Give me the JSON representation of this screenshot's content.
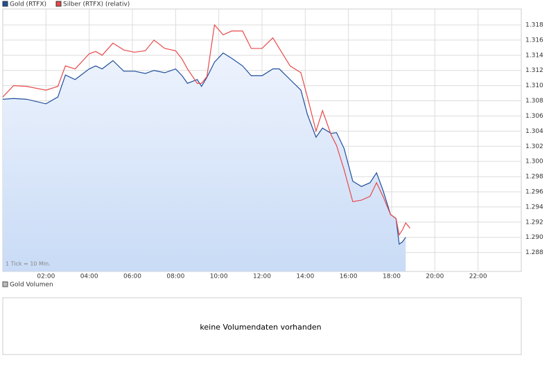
{
  "chart_data": {
    "type": "line",
    "legend": "top-left",
    "annotation": "1 Tick = 10 Min.",
    "grid": true,
    "x": [
      0,
      0.5,
      1.1,
      2.0,
      2.55,
      2.9,
      3.35,
      4.0,
      4.3,
      4.6,
      5.1,
      5.6,
      6.1,
      6.6,
      7.0,
      7.5,
      8.0,
      8.3,
      8.55,
      9.0,
      9.2,
      9.45,
      9.8,
      10.2,
      10.6,
      11.1,
      11.5,
      12.0,
      12.5,
      12.8,
      13.3,
      13.8,
      14.1,
      14.5,
      14.8,
      15.2,
      15.45,
      15.8,
      16.2,
      16.6,
      17.0,
      17.3,
      17.6,
      17.95,
      18.2,
      18.35,
      18.5,
      18.65,
      18.85
    ],
    "series": [
      {
        "name": "Gold (RTFX)",
        "color": "#1f4e9c",
        "area": true,
        "values": [
          1.3082,
          1.3083,
          1.3082,
          1.3076,
          1.3085,
          1.3114,
          1.3108,
          1.3122,
          1.3126,
          1.3122,
          1.3133,
          1.3119,
          1.3119,
          1.3116,
          1.312,
          1.3117,
          1.3122,
          1.3113,
          1.3103,
          1.3108,
          1.3099,
          1.3111,
          1.3131,
          1.3143,
          1.3136,
          1.3126,
          1.3113,
          1.3113,
          1.3122,
          1.3122,
          1.3108,
          1.3094,
          1.3062,
          1.3032,
          1.3044,
          1.3037,
          1.3038,
          1.3017,
          1.2974,
          1.2967,
          1.2972,
          1.2985,
          1.2962,
          1.293,
          1.2925,
          1.2891,
          1.2894,
          1.29,
          null
        ]
      },
      {
        "name": "Silber (RTFX) (relativ)",
        "color": "#e8484a",
        "area": false,
        "values": [
          1.3085,
          1.31,
          1.3099,
          1.3094,
          1.3099,
          1.3126,
          1.3122,
          1.3142,
          1.3145,
          1.314,
          1.3156,
          1.3147,
          1.3144,
          1.3146,
          1.316,
          1.3149,
          1.3146,
          1.3135,
          1.3122,
          1.3103,
          1.3103,
          1.3112,
          1.318,
          1.3167,
          1.3172,
          1.3172,
          1.3149,
          1.3149,
          1.3163,
          1.3149,
          1.3126,
          1.3117,
          1.3085,
          1.304,
          1.3067,
          1.3035,
          1.3021,
          1.2989,
          1.2947,
          1.2949,
          1.2954,
          1.2972,
          1.2954,
          1.293,
          1.2925,
          1.2903,
          1.291,
          1.2919,
          1.2912
        ]
      }
    ],
    "xlim": [
      0,
      24
    ],
    "xticks": [
      {
        "value": 2,
        "label": "02:00"
      },
      {
        "value": 4,
        "label": "04:00"
      },
      {
        "value": 6,
        "label": "06:00"
      },
      {
        "value": 8,
        "label": "08:00"
      },
      {
        "value": 10,
        "label": "10:00"
      },
      {
        "value": 12,
        "label": "12:00"
      },
      {
        "value": 14,
        "label": "14:00"
      },
      {
        "value": 16,
        "label": "16:00"
      },
      {
        "value": 18,
        "label": "18:00"
      },
      {
        "value": 20,
        "label": "20:00"
      },
      {
        "value": 22,
        "label": "22:00"
      }
    ],
    "ylim": [
      1.2855,
      1.3201
    ],
    "yticks": [
      1.288,
      {
        "value": 1.29,
        "label": "1.290"
      },
      1.292,
      1.294,
      1.296,
      1.298,
      {
        "value": 1.3,
        "label": "1.300"
      },
      1.302,
      1.304,
      1.306,
      1.308,
      {
        "value": 1.31,
        "label": "1.310"
      },
      1.312,
      1.314,
      1.316,
      1.318
    ]
  },
  "volume_panel": {
    "legend": "Gold Volumen",
    "legend_color": "#bbbbbb",
    "message": "keine Volumendaten vorhanden"
  }
}
